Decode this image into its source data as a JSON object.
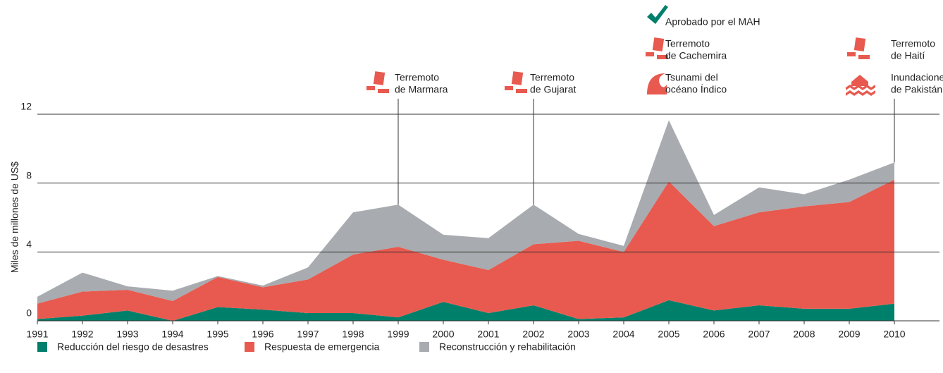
{
  "chart_data": {
    "type": "stacked_area",
    "y_label": "Miles de millones de US$",
    "x": [
      1991,
      1992,
      1993,
      1994,
      1995,
      1996,
      1997,
      1998,
      1999,
      2000,
      2001,
      2002,
      2003,
      2004,
      2005,
      2006,
      2007,
      2008,
      2009,
      2010
    ],
    "xlim": [
      1991,
      2011
    ],
    "ylim": [
      0,
      12
    ],
    "yticks": [
      0,
      4,
      8,
      12
    ],
    "grid": true,
    "series": [
      {
        "name": "Reducción del riesgo de desastres",
        "color": "#00806a",
        "values": [
          0.1,
          0.3,
          0.6,
          0,
          0.8,
          0.65,
          0.45,
          0.45,
          0.2,
          1.1,
          0.45,
          0.9,
          0.1,
          0.2,
          1.2,
          0.6,
          0.9,
          0.7,
          0.7,
          1.0
        ]
      },
      {
        "name": "Respuesta de emergencia",
        "color": "#e85a4f",
        "values": [
          0.9,
          1.4,
          1.2,
          1.15,
          1.75,
          1.3,
          1.95,
          3.4,
          4.1,
          2.45,
          2.5,
          3.55,
          4.55,
          3.8,
          6.9,
          4.9,
          5.4,
          5.95,
          6.2,
          7.2
        ]
      },
      {
        "name": "Reconstrucción y rehabilitación",
        "color": "#a8abaf",
        "values": [
          0.4,
          1.1,
          0.2,
          0.6,
          0.05,
          0.1,
          0.7,
          2.45,
          2.45,
          1.45,
          1.85,
          2.3,
          0.4,
          0.35,
          3.55,
          0.65,
          1.45,
          0.7,
          1.3,
          1.0
        ]
      }
    ],
    "annotations": [
      {
        "x": 1999,
        "items": [
          [
            "Terremoto",
            "de Marmara"
          ]
        ]
      },
      {
        "x": 2002,
        "items": [
          [
            "Terremoto",
            "de Gujarat"
          ]
        ]
      },
      {
        "x": 2005,
        "items": [
          [
            "Aprobado por el MAH"
          ],
          [
            "Terremoto",
            "de Cachemira"
          ],
          [
            "Tsunami del",
            "océano Índico"
          ]
        ]
      },
      {
        "x": 2010,
        "items": [
          [
            "Terremoto",
            "de Haití"
          ],
          [
            "Inundaciones",
            "de Pakistán"
          ]
        ]
      }
    ]
  }
}
